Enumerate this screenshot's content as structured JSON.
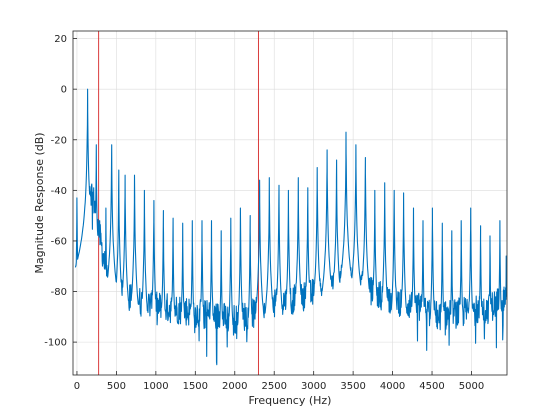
{
  "chart_data": {
    "type": "line",
    "title": "",
    "xlabel": "Frequency (Hz)",
    "ylabel": "Magnitude Response (dB)",
    "xlim": [
      -50,
      5450
    ],
    "ylim": [
      -113,
      23
    ],
    "xticks": [
      0,
      500,
      1000,
      1500,
      2000,
      2500,
      3000,
      3500,
      4000,
      4500,
      5000
    ],
    "yticks": [
      20,
      0,
      -20,
      -40,
      -60,
      -80,
      -100
    ],
    "grid": true,
    "legend": "none",
    "colors": {
      "series": "#0072BD",
      "markers": "#D62728",
      "grid": "#DCDCDC",
      "axes": "#262626"
    },
    "vertical_markers": [
      {
        "x": 275
      },
      {
        "x": 2300
      }
    ],
    "harmonic_spacing_hz": 122,
    "harmonic_peaks": [
      {
        "x": 0,
        "y": -43
      },
      {
        "x": 135,
        "y": 0
      },
      {
        "x": 245,
        "y": -22
      },
      {
        "x": 367,
        "y": -47
      },
      {
        "x": 440,
        "y": -22
      },
      {
        "x": 530,
        "y": -32
      },
      {
        "x": 610,
        "y": -34
      },
      {
        "x": 730,
        "y": -34
      },
      {
        "x": 855,
        "y": -40
      },
      {
        "x": 975,
        "y": -44
      },
      {
        "x": 1095,
        "y": -48
      },
      {
        "x": 1218,
        "y": -51
      },
      {
        "x": 1340,
        "y": -53
      },
      {
        "x": 1462,
        "y": -52
      },
      {
        "x": 1585,
        "y": -52
      },
      {
        "x": 1705,
        "y": -52
      },
      {
        "x": 1828,
        "y": -56
      },
      {
        "x": 1950,
        "y": -51
      },
      {
        "x": 2072,
        "y": -47
      },
      {
        "x": 2195,
        "y": -50
      },
      {
        "x": 2315,
        "y": -36
      },
      {
        "x": 2438,
        "y": -35
      },
      {
        "x": 2560,
        "y": -38
      },
      {
        "x": 2680,
        "y": -40
      },
      {
        "x": 2805,
        "y": -35
      },
      {
        "x": 2925,
        "y": -39
      },
      {
        "x": 3045,
        "y": -31
      },
      {
        "x": 3170,
        "y": -24
      },
      {
        "x": 3290,
        "y": -28
      },
      {
        "x": 3410,
        "y": -17
      },
      {
        "x": 3535,
        "y": -22
      },
      {
        "x": 3655,
        "y": -27
      },
      {
        "x": 3775,
        "y": -40
      },
      {
        "x": 3900,
        "y": -37
      },
      {
        "x": 4020,
        "y": -40
      },
      {
        "x": 4140,
        "y": -41
      },
      {
        "x": 4265,
        "y": -47
      },
      {
        "x": 4385,
        "y": -52
      },
      {
        "x": 4505,
        "y": -47
      },
      {
        "x": 4630,
        "y": -53
      },
      {
        "x": 4750,
        "y": -56
      },
      {
        "x": 4870,
        "y": -52
      },
      {
        "x": 4990,
        "y": -47
      },
      {
        "x": 5115,
        "y": -54
      },
      {
        "x": 5235,
        "y": -58
      },
      {
        "x": 5360,
        "y": -52
      },
      {
        "x": 5440,
        "y": -66
      }
    ],
    "floor_profile": [
      {
        "x": -20,
        "y": -92
      },
      {
        "x": 60,
        "y": -73
      },
      {
        "x": 140,
        "y": -35
      },
      {
        "x": 220,
        "y": -45
      },
      {
        "x": 300,
        "y": -60
      },
      {
        "x": 400,
        "y": -78
      },
      {
        "x": 600,
        "y": -82
      },
      {
        "x": 800,
        "y": -84
      },
      {
        "x": 1000,
        "y": -86
      },
      {
        "x": 1300,
        "y": -87
      },
      {
        "x": 1600,
        "y": -89
      },
      {
        "x": 2000,
        "y": -91
      },
      {
        "x": 2300,
        "y": -88
      },
      {
        "x": 2600,
        "y": -84
      },
      {
        "x": 2900,
        "y": -82
      },
      {
        "x": 3200,
        "y": -78
      },
      {
        "x": 3450,
        "y": -74
      },
      {
        "x": 3700,
        "y": -80
      },
      {
        "x": 4000,
        "y": -83
      },
      {
        "x": 4300,
        "y": -86
      },
      {
        "x": 4600,
        "y": -90
      },
      {
        "x": 4900,
        "y": -88
      },
      {
        "x": 5200,
        "y": -87
      },
      {
        "x": 5440,
        "y": -82
      }
    ]
  }
}
